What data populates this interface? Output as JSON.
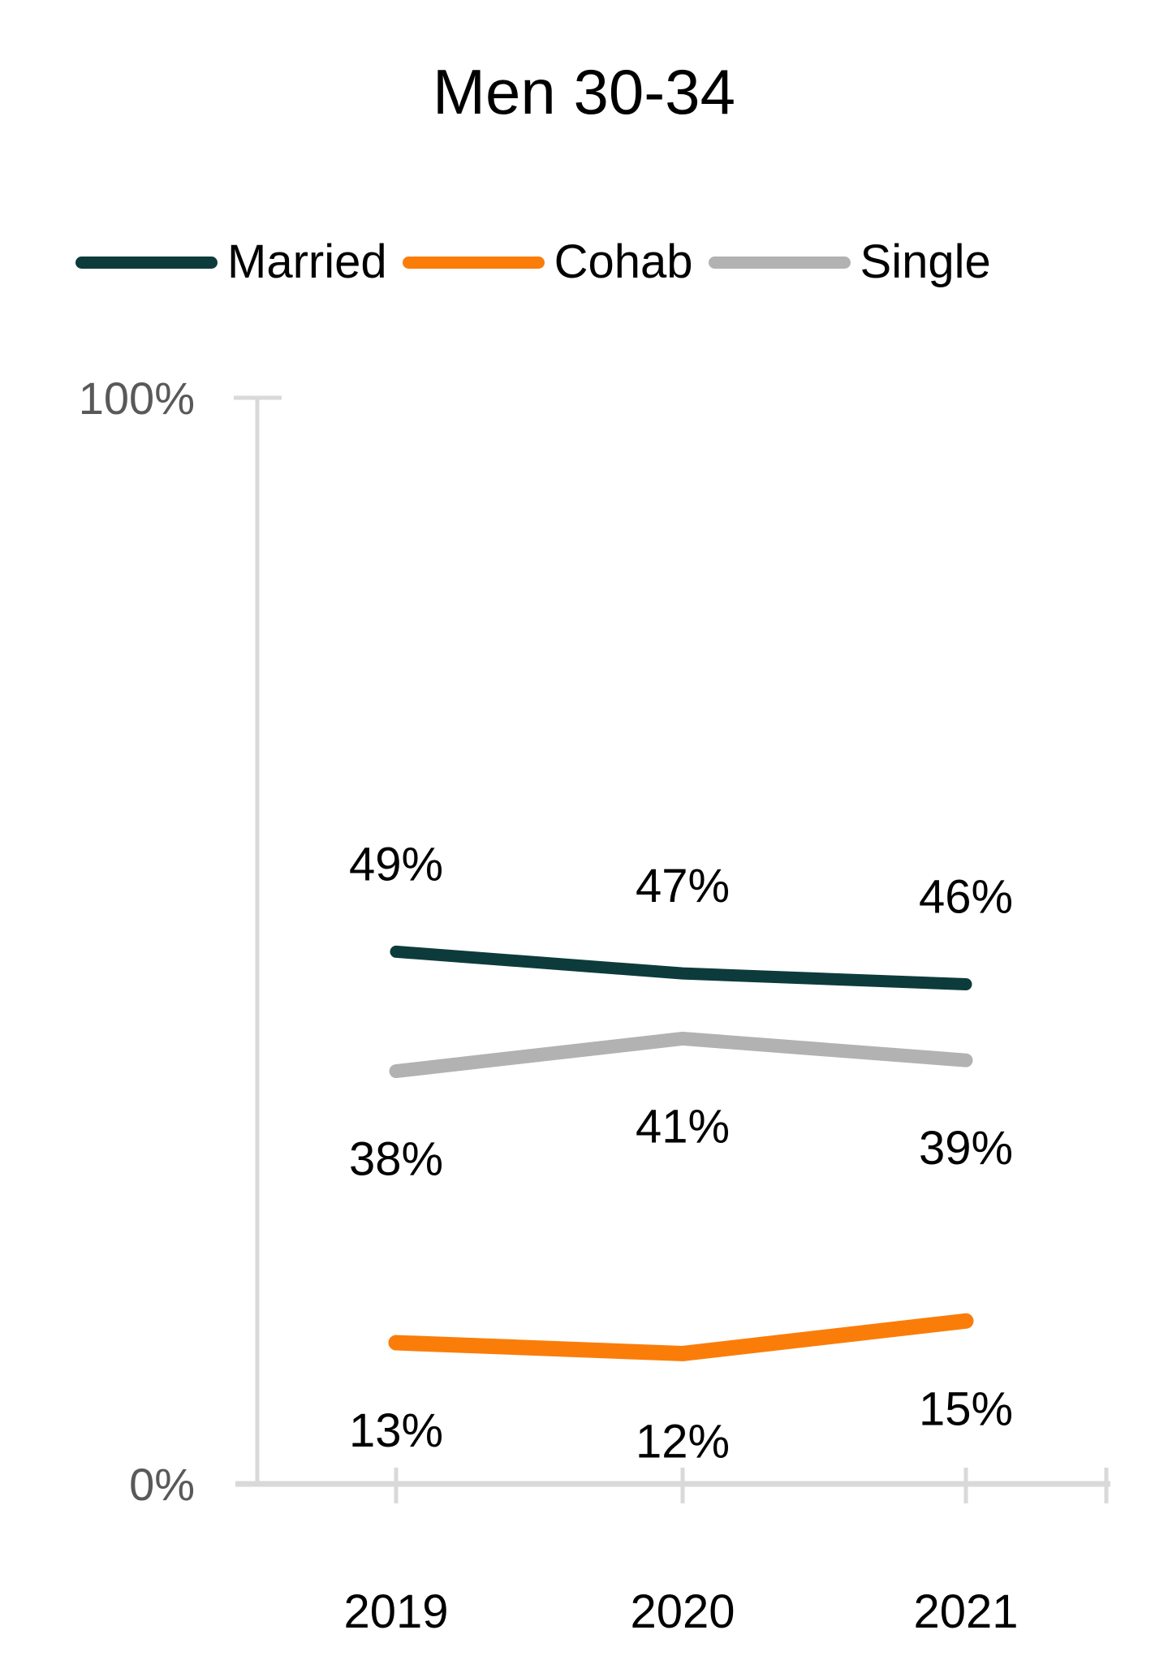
{
  "title": "Men 30-34",
  "colors": {
    "married": "#0d3b3b",
    "cohab": "#fa7d0a",
    "single": "#b2b2b2",
    "axis": "#d9d9d9",
    "axis_label": "#595959",
    "text": "#000000",
    "background": "#ffffff"
  },
  "legend": {
    "items": [
      {
        "label": "Married",
        "series": "married"
      },
      {
        "label": "Cohab",
        "series": "cohab"
      },
      {
        "label": "Single",
        "series": "single"
      }
    ]
  },
  "chart_data": {
    "type": "line",
    "title": "Men 30-34",
    "categories": [
      "2019",
      "2020",
      "2021"
    ],
    "series": [
      {
        "name": "Married",
        "values": [
          49,
          47,
          46
        ],
        "labels": [
          "49%",
          "47%",
          "46%"
        ],
        "color": "#0d3b3b",
        "label_position": "above",
        "stroke_width": 15
      },
      {
        "name": "Cohab",
        "values": [
          13,
          12,
          15
        ],
        "labels": [
          "13%",
          "12%",
          "15%"
        ],
        "color": "#fa7d0a",
        "label_position": "below",
        "stroke_width": 19
      },
      {
        "name": "Single",
        "values": [
          38,
          41,
          39
        ],
        "labels": [
          "38%",
          "41%",
          "39%"
        ],
        "color": "#b2b2b2",
        "label_position": "below",
        "stroke_width": 17
      }
    ],
    "ylabel": "",
    "xlabel": "",
    "ylim": [
      0,
      100
    ],
    "y_tick_labels": [
      "0%",
      "100%"
    ],
    "grid": false,
    "legend_position": "top"
  }
}
